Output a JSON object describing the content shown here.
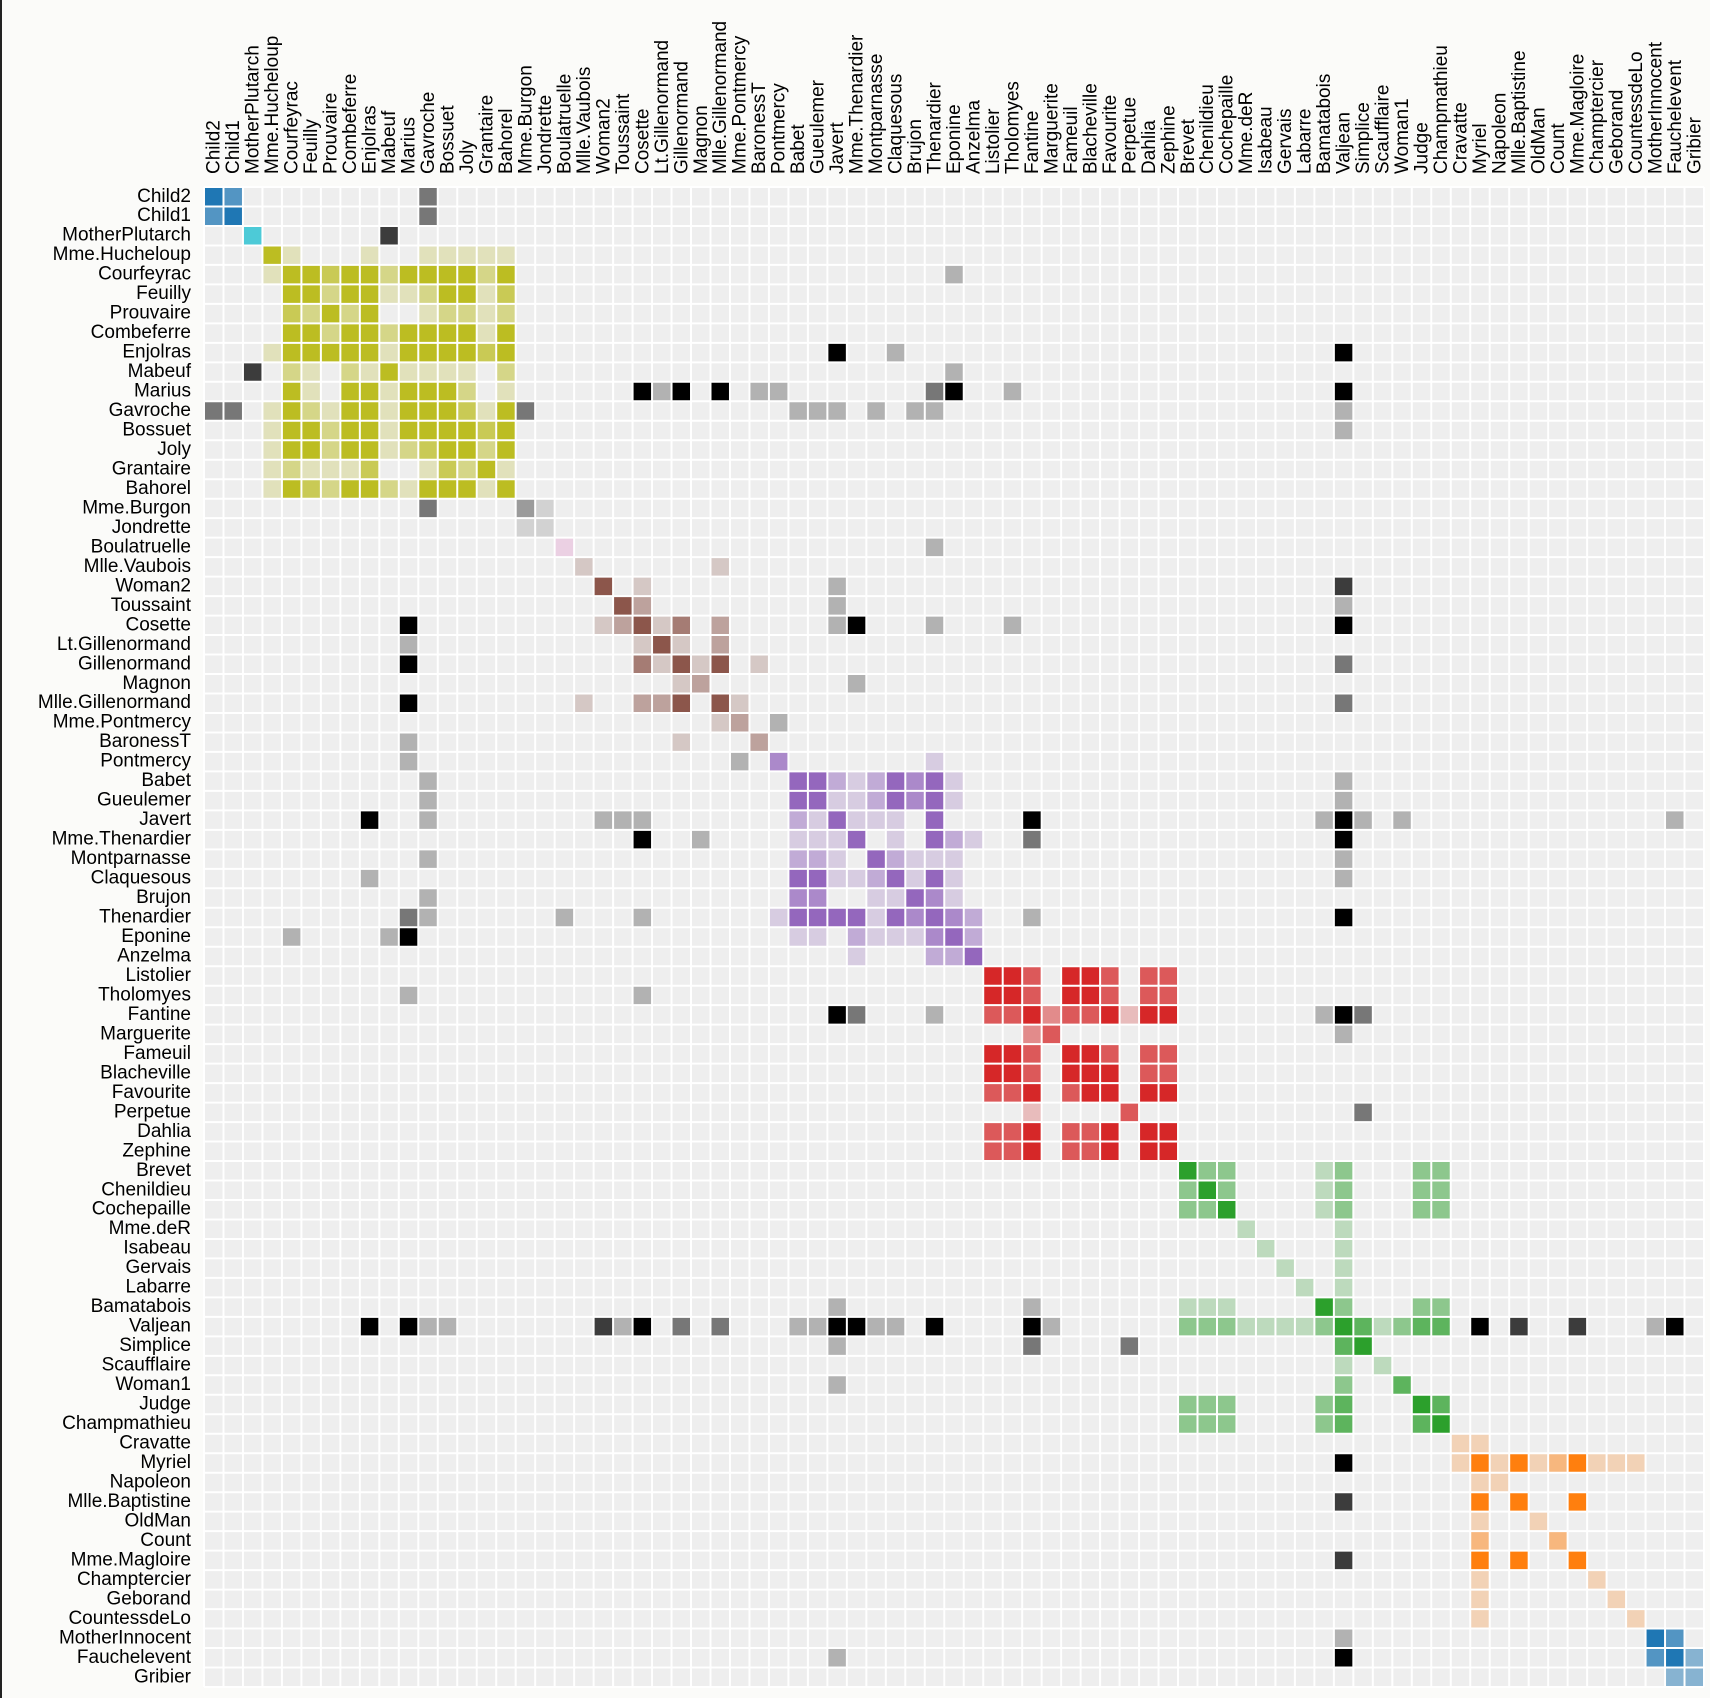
{
  "chart_data": {
    "type": "heatmap",
    "title": "",
    "order": [
      "Child2",
      "Child1",
      "MotherPlutarch",
      "Mme.Hucheloup",
      "Courfeyrac",
      "Feuilly",
      "Prouvaire",
      "Combeferre",
      "Enjolras",
      "Mabeuf",
      "Marius",
      "Gavroche",
      "Bossuet",
      "Joly",
      "Grantaire",
      "Bahorel",
      "Mme.Burgon",
      "Jondrette",
      "Boulatruelle",
      "Mlle.Vaubois",
      "Woman2",
      "Toussaint",
      "Cosette",
      "Lt.Gillenormand",
      "Gillenormand",
      "Magnon",
      "Mlle.Gillenormand",
      "Mme.Pontmercy",
      "BaronessT",
      "Pontmercy",
      "Babet",
      "Gueulemer",
      "Javert",
      "Mme.Thenardier",
      "Montparnasse",
      "Claquesous",
      "Brujon",
      "Thenardier",
      "Eponine",
      "Anzelma",
      "Listolier",
      "Tholomyes",
      "Fantine",
      "Marguerite",
      "Fameuil",
      "Blacheville",
      "Favourite",
      "Perpetue",
      "Dahlia",
      "Zephine",
      "Brevet",
      "Chenildieu",
      "Cochepaille",
      "Mme.deR",
      "Isabeau",
      "Gervais",
      "Labarre",
      "Bamatabois",
      "Valjean",
      "Simplice",
      "Scaufflaire",
      "Woman1",
      "Judge",
      "Champmathieu",
      "Cravatte",
      "Myriel",
      "Napoleon",
      "Mlle.Baptistine",
      "OldMan",
      "Count",
      "Mme.Magloire",
      "Champtercier",
      "Geborand",
      "CountessdeLo",
      "MotherInnocent",
      "Fauchelevent",
      "Gribier"
    ],
    "nodes": [
      [
        "Myriel",
        1
      ],
      [
        "Napoleon",
        1
      ],
      [
        "Mlle.Baptistine",
        1
      ],
      [
        "Mme.Magloire",
        1
      ],
      [
        "CountessdeLo",
        1
      ],
      [
        "Geborand",
        1
      ],
      [
        "Champtercier",
        1
      ],
      [
        "Cravatte",
        1
      ],
      [
        "Count",
        1
      ],
      [
        "OldMan",
        1
      ],
      [
        "Labarre",
        2
      ],
      [
        "Valjean",
        2
      ],
      [
        "Marguerite",
        3
      ],
      [
        "Mme.deR",
        2
      ],
      [
        "Isabeau",
        2
      ],
      [
        "Gervais",
        2
      ],
      [
        "Tholomyes",
        3
      ],
      [
        "Listolier",
        3
      ],
      [
        "Fameuil",
        3
      ],
      [
        "Blacheville",
        3
      ],
      [
        "Favourite",
        3
      ],
      [
        "Dahlia",
        3
      ],
      [
        "Zephine",
        3
      ],
      [
        "Fantine",
        3
      ],
      [
        "Mme.Thenardier",
        4
      ],
      [
        "Thenardier",
        4
      ],
      [
        "Cosette",
        5
      ],
      [
        "Javert",
        4
      ],
      [
        "Fauchelevent",
        0
      ],
      [
        "Bamatabois",
        2
      ],
      [
        "Perpetue",
        3
      ],
      [
        "Simplice",
        2
      ],
      [
        "Scaufflaire",
        2
      ],
      [
        "Woman1",
        2
      ],
      [
        "Judge",
        2
      ],
      [
        "Champmathieu",
        2
      ],
      [
        "Brevet",
        2
      ],
      [
        "Chenildieu",
        2
      ],
      [
        "Cochepaille",
        2
      ],
      [
        "Pontmercy",
        4
      ],
      [
        "Boulatruelle",
        6
      ],
      [
        "Eponine",
        4
      ],
      [
        "Anzelma",
        4
      ],
      [
        "Woman2",
        5
      ],
      [
        "MotherInnocent",
        0
      ],
      [
        "Gribier",
        0
      ],
      [
        "Jondrette",
        7
      ],
      [
        "Mme.Burgon",
        7
      ],
      [
        "Gavroche",
        8
      ],
      [
        "Gillenormand",
        5
      ],
      [
        "Magnon",
        5
      ],
      [
        "Mlle.Gillenormand",
        5
      ],
      [
        "Mme.Pontmercy",
        5
      ],
      [
        "Mlle.Vaubois",
        5
      ],
      [
        "Lt.Gillenormand",
        5
      ],
      [
        "Marius",
        8
      ],
      [
        "BaronessT",
        5
      ],
      [
        "Mabeuf",
        8
      ],
      [
        "Enjolras",
        8
      ],
      [
        "Combeferre",
        8
      ],
      [
        "Prouvaire",
        8
      ],
      [
        "Feuilly",
        8
      ],
      [
        "Courfeyrac",
        8
      ],
      [
        "Bahorel",
        8
      ],
      [
        "Bossuet",
        8
      ],
      [
        "Joly",
        8
      ],
      [
        "Grantaire",
        8
      ],
      [
        "MotherPlutarch",
        9
      ],
      [
        "Gueulemer",
        4
      ],
      [
        "Babet",
        4
      ],
      [
        "Claquesous",
        4
      ],
      [
        "Montparnasse",
        4
      ],
      [
        "Toussaint",
        5
      ],
      [
        "Child1",
        10
      ],
      [
        "Child2",
        10
      ],
      [
        "Brujon",
        4
      ],
      [
        "Mme.Hucheloup",
        8
      ]
    ],
    "links": [
      [
        1,
        0,
        1
      ],
      [
        2,
        0,
        8
      ],
      [
        3,
        0,
        10
      ],
      [
        3,
        2,
        6
      ],
      [
        4,
        0,
        1
      ],
      [
        5,
        0,
        1
      ],
      [
        6,
        0,
        1
      ],
      [
        7,
        0,
        1
      ],
      [
        8,
        0,
        2
      ],
      [
        9,
        0,
        1
      ],
      [
        11,
        10,
        1
      ],
      [
        11,
        3,
        3
      ],
      [
        11,
        2,
        3
      ],
      [
        11,
        0,
        5
      ],
      [
        12,
        11,
        1
      ],
      [
        13,
        11,
        1
      ],
      [
        14,
        11,
        1
      ],
      [
        15,
        11,
        1
      ],
      [
        17,
        16,
        4
      ],
      [
        18,
        16,
        4
      ],
      [
        18,
        17,
        4
      ],
      [
        19,
        16,
        4
      ],
      [
        19,
        17,
        4
      ],
      [
        19,
        18,
        4
      ],
      [
        20,
        16,
        3
      ],
      [
        20,
        17,
        3
      ],
      [
        20,
        18,
        3
      ],
      [
        20,
        19,
        4
      ],
      [
        21,
        16,
        3
      ],
      [
        21,
        17,
        3
      ],
      [
        21,
        18,
        3
      ],
      [
        21,
        19,
        3
      ],
      [
        21,
        20,
        5
      ],
      [
        22,
        16,
        3
      ],
      [
        22,
        17,
        3
      ],
      [
        22,
        18,
        3
      ],
      [
        22,
        19,
        3
      ],
      [
        22,
        20,
        4
      ],
      [
        22,
        21,
        4
      ],
      [
        23,
        16,
        3
      ],
      [
        23,
        17,
        3
      ],
      [
        23,
        18,
        3
      ],
      [
        23,
        19,
        3
      ],
      [
        23,
        20,
        4
      ],
      [
        23,
        21,
        4
      ],
      [
        23,
        22,
        4
      ],
      [
        23,
        12,
        2
      ],
      [
        23,
        11,
        9
      ],
      [
        24,
        23,
        2
      ],
      [
        24,
        11,
        7
      ],
      [
        25,
        24,
        13
      ],
      [
        25,
        23,
        1
      ],
      [
        25,
        11,
        12
      ],
      [
        26,
        24,
        4
      ],
      [
        26,
        11,
        31
      ],
      [
        26,
        16,
        1
      ],
      [
        26,
        25,
        1
      ],
      [
        27,
        11,
        17
      ],
      [
        27,
        23,
        5
      ],
      [
        27,
        25,
        5
      ],
      [
        27,
        24,
        1
      ],
      [
        27,
        26,
        1
      ],
      [
        28,
        11,
        8
      ],
      [
        28,
        27,
        1
      ],
      [
        29,
        23,
        1
      ],
      [
        29,
        27,
        1
      ],
      [
        29,
        11,
        2
      ],
      [
        30,
        23,
        1
      ],
      [
        31,
        30,
        2
      ],
      [
        31,
        11,
        3
      ],
      [
        31,
        23,
        2
      ],
      [
        31,
        27,
        1
      ],
      [
        32,
        11,
        1
      ],
      [
        33,
        11,
        2
      ],
      [
        33,
        27,
        1
      ],
      [
        34,
        11,
        3
      ],
      [
        34,
        29,
        2
      ],
      [
        35,
        11,
        3
      ],
      [
        35,
        34,
        3
      ],
      [
        35,
        29,
        2
      ],
      [
        36,
        34,
        2
      ],
      [
        36,
        35,
        2
      ],
      [
        36,
        11,
        2
      ],
      [
        36,
        29,
        1
      ],
      [
        37,
        34,
        2
      ],
      [
        37,
        35,
        2
      ],
      [
        37,
        36,
        2
      ],
      [
        37,
        11,
        2
      ],
      [
        37,
        29,
        1
      ],
      [
        38,
        34,
        2
      ],
      [
        38,
        35,
        2
      ],
      [
        38,
        36,
        2
      ],
      [
        38,
        37,
        2
      ],
      [
        38,
        11,
        2
      ],
      [
        38,
        29,
        1
      ],
      [
        39,
        25,
        1
      ],
      [
        40,
        25,
        1
      ],
      [
        41,
        24,
        2
      ],
      [
        41,
        25,
        3
      ],
      [
        42,
        41,
        2
      ],
      [
        42,
        25,
        2
      ],
      [
        42,
        24,
        1
      ],
      [
        43,
        11,
        3
      ],
      [
        43,
        26,
        1
      ],
      [
        43,
        27,
        1
      ],
      [
        44,
        28,
        3
      ],
      [
        44,
        11,
        1
      ],
      [
        45,
        28,
        2
      ],
      [
        47,
        46,
        1
      ],
      [
        48,
        47,
        2
      ],
      [
        48,
        25,
        1
      ],
      [
        48,
        27,
        1
      ],
      [
        48,
        11,
        1
      ],
      [
        49,
        26,
        3
      ],
      [
        49,
        11,
        2
      ],
      [
        50,
        49,
        1
      ],
      [
        50,
        24,
        1
      ],
      [
        51,
        49,
        9
      ],
      [
        51,
        26,
        2
      ],
      [
        51,
        11,
        2
      ],
      [
        52,
        51,
        1
      ],
      [
        52,
        39,
        1
      ],
      [
        53,
        51,
        1
      ],
      [
        54,
        51,
        2
      ],
      [
        54,
        49,
        1
      ],
      [
        54,
        26,
        1
      ],
      [
        55,
        51,
        6
      ],
      [
        55,
        49,
        12
      ],
      [
        55,
        39,
        1
      ],
      [
        55,
        54,
        1
      ],
      [
        55,
        26,
        21
      ],
      [
        55,
        11,
        19
      ],
      [
        55,
        16,
        1
      ],
      [
        55,
        25,
        2
      ],
      [
        55,
        41,
        5
      ],
      [
        55,
        48,
        4
      ],
      [
        56,
        49,
        1
      ],
      [
        56,
        55,
        1
      ],
      [
        57,
        55,
        1
      ],
      [
        57,
        41,
        1
      ],
      [
        57,
        48,
        1
      ],
      [
        58,
        55,
        7
      ],
      [
        58,
        48,
        7
      ],
      [
        58,
        27,
        6
      ],
      [
        58,
        57,
        1
      ],
      [
        58,
        11,
        4
      ],
      [
        59,
        58,
        15
      ],
      [
        59,
        55,
        5
      ],
      [
        59,
        48,
        6
      ],
      [
        59,
        57,
        2
      ],
      [
        60,
        48,
        1
      ],
      [
        60,
        58,
        4
      ],
      [
        60,
        59,
        2
      ],
      [
        61,
        48,
        2
      ],
      [
        61,
        58,
        6
      ],
      [
        61,
        60,
        2
      ],
      [
        61,
        59,
        5
      ],
      [
        61,
        57,
        1
      ],
      [
        61,
        55,
        1
      ],
      [
        62,
        55,
        9
      ],
      [
        62,
        58,
        17
      ],
      [
        62,
        59,
        13
      ],
      [
        62,
        48,
        7
      ],
      [
        62,
        57,
        2
      ],
      [
        62,
        41,
        1
      ],
      [
        62,
        61,
        6
      ],
      [
        62,
        60,
        3
      ],
      [
        63,
        59,
        5
      ],
      [
        63,
        48,
        5
      ],
      [
        63,
        62,
        6
      ],
      [
        63,
        57,
        2
      ],
      [
        63,
        58,
        4
      ],
      [
        63,
        61,
        3
      ],
      [
        63,
        60,
        2
      ],
      [
        63,
        55,
        1
      ],
      [
        64,
        55,
        5
      ],
      [
        64,
        62,
        12
      ],
      [
        64,
        48,
        5
      ],
      [
        64,
        63,
        4
      ],
      [
        64,
        58,
        10
      ],
      [
        64,
        61,
        6
      ],
      [
        64,
        60,
        2
      ],
      [
        64,
        59,
        9
      ],
      [
        64,
        57,
        1
      ],
      [
        64,
        11,
        1
      ],
      [
        65,
        63,
        5
      ],
      [
        65,
        64,
        7
      ],
      [
        65,
        48,
        3
      ],
      [
        65,
        62,
        5
      ],
      [
        65,
        58,
        5
      ],
      [
        65,
        61,
        5
      ],
      [
        65,
        60,
        2
      ],
      [
        65,
        59,
        5
      ],
      [
        65,
        57,
        1
      ],
      [
        65,
        55,
        2
      ],
      [
        66,
        64,
        3
      ],
      [
        66,
        58,
        3
      ],
      [
        66,
        59,
        1
      ],
      [
        66,
        62,
        2
      ],
      [
        66,
        65,
        2
      ],
      [
        66,
        48,
        1
      ],
      [
        66,
        63,
        1
      ],
      [
        66,
        61,
        1
      ],
      [
        66,
        60,
        1
      ],
      [
        67,
        57,
        3
      ],
      [
        68,
        25,
        5
      ],
      [
        68,
        11,
        1
      ],
      [
        68,
        24,
        1
      ],
      [
        68,
        27,
        1
      ],
      [
        68,
        48,
        1
      ],
      [
        68,
        41,
        1
      ],
      [
        69,
        25,
        6
      ],
      [
        69,
        68,
        6
      ],
      [
        69,
        11,
        1
      ],
      [
        69,
        24,
        1
      ],
      [
        69,
        27,
        2
      ],
      [
        69,
        48,
        1
      ],
      [
        69,
        41,
        1
      ],
      [
        70,
        25,
        4
      ],
      [
        70,
        69,
        4
      ],
      [
        70,
        68,
        4
      ],
      [
        70,
        11,
        1
      ],
      [
        70,
        24,
        1
      ],
      [
        70,
        27,
        1
      ],
      [
        70,
        41,
        1
      ],
      [
        70,
        58,
        1
      ],
      [
        71,
        27,
        1
      ],
      [
        71,
        69,
        2
      ],
      [
        71,
        68,
        2
      ],
      [
        71,
        70,
        2
      ],
      [
        71,
        11,
        1
      ],
      [
        71,
        48,
        1
      ],
      [
        71,
        41,
        1
      ],
      [
        71,
        25,
        1
      ],
      [
        72,
        26,
        2
      ],
      [
        72,
        27,
        1
      ],
      [
        72,
        11,
        1
      ],
      [
        73,
        48,
        2
      ],
      [
        74,
        48,
        2
      ],
      [
        74,
        73,
        3
      ],
      [
        75,
        69,
        3
      ],
      [
        75,
        68,
        3
      ],
      [
        75,
        25,
        3
      ],
      [
        75,
        48,
        1
      ],
      [
        75,
        41,
        1
      ],
      [
        75,
        70,
        1
      ],
      [
        75,
        71,
        1
      ],
      [
        76,
        64,
        1
      ],
      [
        76,
        65,
        1
      ],
      [
        76,
        66,
        1
      ],
      [
        76,
        63,
        1
      ],
      [
        76,
        62,
        1
      ],
      [
        76,
        48,
        1
      ],
      [
        76,
        58,
        1
      ]
    ],
    "group_colors": [
      "#1f77b4",
      "#ff7f0e",
      "#2ca02c",
      "#d62728",
      "#9467bd",
      "#8c564b",
      "#e377c2",
      "#7f7f7f",
      "#bcbd22",
      "#17becf",
      "#1f77b4"
    ],
    "cross_group_color": "#000000",
    "background_color": "#eeeeee",
    "opacity_domain": [
      0,
      4
    ]
  }
}
